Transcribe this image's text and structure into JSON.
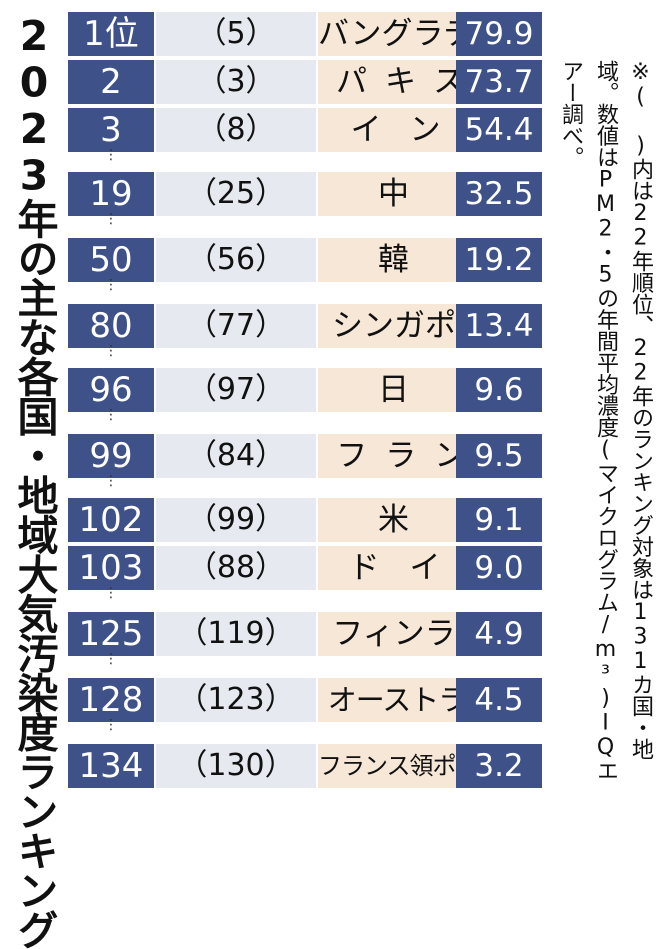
{
  "title": "2023年の主な各国・地域大気汚染度ランキング",
  "note": "※( )内は22年順位、22年のランキング対象は131カ国・地域。数値はPM2・5の年間平均濃度(マイクログラム/m³)IQエアー調べ。",
  "gap_marker": "⋮",
  "rows": [
    {
      "rank": "1位",
      "prev": "（5）",
      "country": "バングラデシュ",
      "value": "79.9"
    },
    {
      "rank": "2",
      "prev": "（3）",
      "country": "パキスタン",
      "value": "73.7"
    },
    {
      "rank": "3",
      "prev": "（8）",
      "country": "インド",
      "value": "54.4"
    },
    {
      "rank": "19",
      "prev": "（25）",
      "country": "中国",
      "value": "32.5"
    },
    {
      "rank": "50",
      "prev": "（56）",
      "country": "韓国",
      "value": "19.2"
    },
    {
      "rank": "80",
      "prev": "（77）",
      "country": "シンガポール",
      "value": "13.4"
    },
    {
      "rank": "96",
      "prev": "（97）",
      "country": "日本",
      "value": "9.6"
    },
    {
      "rank": "99",
      "prev": "（84）",
      "country": "フランス",
      "value": "9.5"
    },
    {
      "rank": "102",
      "prev": "（99）",
      "country": "米国",
      "value": "9.1"
    },
    {
      "rank": "103",
      "prev": "（88）",
      "country": "ドイツ",
      "value": "9.0"
    },
    {
      "rank": "125",
      "prev": "（119）",
      "country": "フィンランド",
      "value": "4.9"
    },
    {
      "rank": "128",
      "prev": "（123）",
      "country": "オーストラリア",
      "value": "4.5"
    },
    {
      "rank": "134",
      "prev": "（130）",
      "country": "フランス領ポリネシア",
      "value": "3.2"
    }
  ]
}
